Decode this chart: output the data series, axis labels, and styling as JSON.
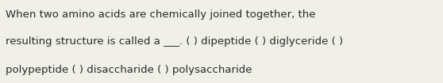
{
  "background_color": "#f0efe8",
  "text_lines": [
    "When two amino acids are chemically joined together, the",
    "resulting structure is called a ___. ( ) dipeptide ( ) diglyceride ( )",
    "polypeptide ( ) disaccharide ( ) polysaccharide"
  ],
  "font_size": 9.5,
  "font_color": "#2a2a2a",
  "font_family": "DejaVu Sans",
  "fig_width": 5.58,
  "fig_height": 1.05,
  "dpi": 100
}
